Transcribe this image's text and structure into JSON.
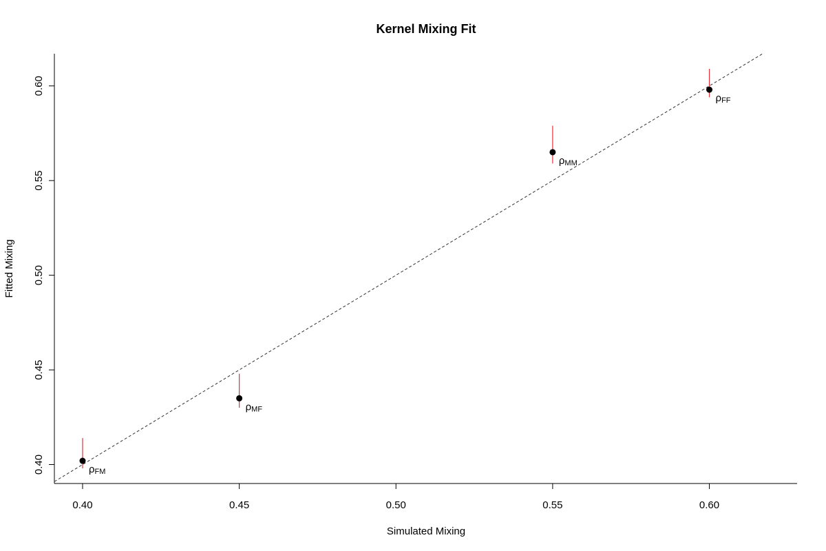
{
  "chart_data": {
    "type": "scatter",
    "title": "Kernel Mixing Fit",
    "xlabel": "Simulated Mixing",
    "ylabel": "Fitted Mixing",
    "xlim": [
      0.391,
      0.628
    ],
    "ylim": [
      0.39,
      0.617
    ],
    "x_ticks": [
      "0.40",
      "0.45",
      "0.50",
      "0.55",
      "0.60"
    ],
    "y_ticks": [
      "0.40",
      "0.45",
      "0.50",
      "0.55",
      "0.60"
    ],
    "reference_line": "y = x",
    "points": [
      {
        "label_main": "ρ",
        "label_sub": "FM",
        "x": 0.4,
        "y": 0.402,
        "err_low": 0.398,
        "err_high": 0.414
      },
      {
        "label_main": "ρ",
        "label_sub": "MF",
        "x": 0.45,
        "y": 0.435,
        "err_low": 0.43,
        "err_high": 0.448
      },
      {
        "label_main": "ρ",
        "label_sub": "MM",
        "x": 0.55,
        "y": 0.565,
        "err_low": 0.559,
        "err_high": 0.579
      },
      {
        "label_main": "ρ",
        "label_sub": "FF",
        "x": 0.6,
        "y": 0.598,
        "err_low": 0.594,
        "err_high": 0.609
      }
    ],
    "colors": {
      "points": "#000000",
      "error_bars": "#e8303a",
      "reference_line": "#333333",
      "axes": "#000000"
    }
  }
}
